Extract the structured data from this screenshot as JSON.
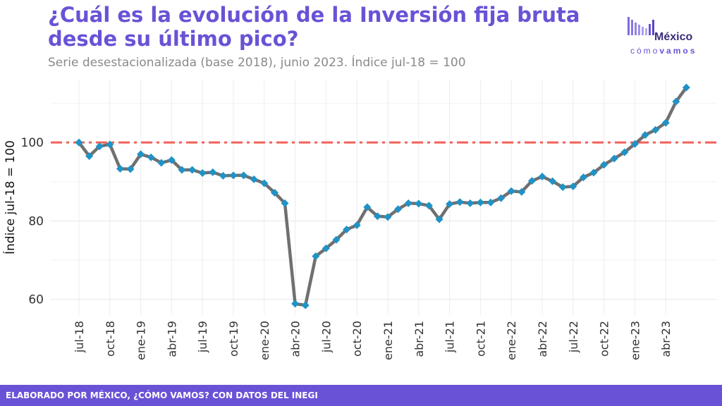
{
  "header": {
    "title": "¿Cuál es la evolución de la Inversión fija bruta desde su último pico?",
    "subtitle": "Serie desestacionalizada (base 2018), junio 2023. Índice jul-18 = 100"
  },
  "logo": {
    "word": "México",
    "sub_light": "cómo",
    "sub_bold": "vamos"
  },
  "footer": {
    "text": "ELABORADO POR MÉXICO, ¿CÓMO VAMOS? CON DATOS DEL INEGI"
  },
  "colors": {
    "accent": "#6a52d6",
    "line": "#707070",
    "marker": "#1f93c6",
    "reference": "#f4605a"
  },
  "chart_data": {
    "type": "line",
    "title": "¿Cuál es la evolución de la Inversión fija bruta desde su último pico?",
    "ylabel": "Índice jul-18 = 100",
    "xlabel": "",
    "ylim": [
      56,
      116
    ],
    "yticks": [
      60,
      80,
      100
    ],
    "grid": true,
    "reference_line": 100,
    "x": [
      "jul-18",
      "ago-18",
      "sep-18",
      "oct-18",
      "nov-18",
      "dic-18",
      "ene-19",
      "feb-19",
      "mar-19",
      "abr-19",
      "may-19",
      "jun-19",
      "jul-19",
      "ago-19",
      "sep-19",
      "oct-19",
      "nov-19",
      "dic-19",
      "ene-20",
      "feb-20",
      "mar-20",
      "abr-20",
      "may-20",
      "jun-20",
      "jul-20",
      "ago-20",
      "sep-20",
      "oct-20",
      "nov-20",
      "dic-20",
      "ene-21",
      "feb-21",
      "mar-21",
      "abr-21",
      "may-21",
      "jun-21",
      "jul-21",
      "ago-21",
      "sep-21",
      "oct-21",
      "nov-21",
      "dic-21",
      "ene-22",
      "feb-22",
      "mar-22",
      "abr-22",
      "may-22",
      "jun-22",
      "jul-22",
      "ago-22",
      "sep-22",
      "oct-22",
      "nov-22",
      "dic-22",
      "ene-23",
      "feb-23",
      "mar-23",
      "abr-23",
      "may-23",
      "jun-23"
    ],
    "xtick_labels": [
      "jul-18",
      "oct-18",
      "ene-19",
      "abr-19",
      "jul-19",
      "oct-19",
      "ene-20",
      "abr-20",
      "jul-20",
      "oct-20",
      "ene-21",
      "abr-21",
      "jul-21",
      "oct-21",
      "ene-22",
      "abr-22",
      "jul-22",
      "oct-22",
      "ene-23",
      "abr-23"
    ],
    "series": [
      {
        "values": [
          100.0,
          96.5,
          99.0,
          99.5,
          93.3,
          93.2,
          97.0,
          96.2,
          94.8,
          95.5,
          93.0,
          93.0,
          92.2,
          92.4,
          91.5,
          91.6,
          91.6,
          90.6,
          89.6,
          87.2,
          84.5,
          58.9,
          58.5,
          71.0,
          73.0,
          75.2,
          77.8,
          78.9,
          83.5,
          81.2,
          81.0,
          83.0,
          84.5,
          84.4,
          83.9,
          80.4,
          84.3,
          84.8,
          84.5,
          84.7,
          84.7,
          85.8,
          87.6,
          87.4,
          90.2,
          91.3,
          90.1,
          88.6,
          88.8,
          91.1,
          92.3,
          94.3,
          95.9,
          97.5,
          99.6,
          101.9,
          103.2,
          105.0,
          110.4,
          114.0
        ]
      }
    ]
  }
}
